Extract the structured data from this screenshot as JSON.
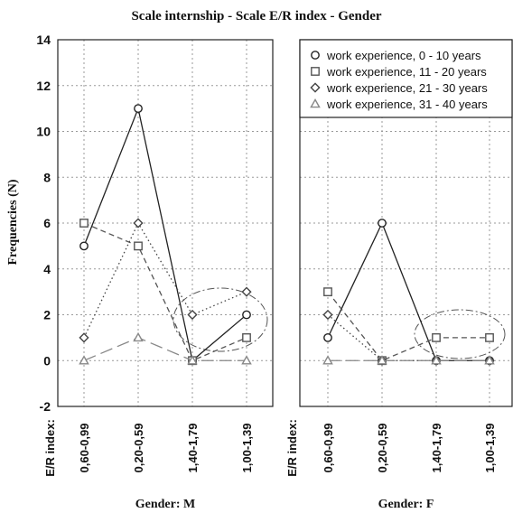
{
  "chart_data": {
    "type": "line",
    "title": "Scale internship  -  Scale E/R index  -  Gender",
    "ylabel": "Frequencies (N)",
    "ylim": [
      -2,
      14
    ],
    "yticks": [
      "14",
      "12",
      "10",
      "8",
      "6",
      "4",
      "2",
      "0",
      "-2"
    ],
    "ytick_values": [
      14,
      12,
      10,
      8,
      6,
      4,
      2,
      0,
      -2
    ],
    "x_axis_label": "E/R index:",
    "categories": [
      "0,60-0,99",
      "0,20-0,59",
      "1,40-1,79",
      "1,00-1,39"
    ],
    "grid": true,
    "legend_position": "top-right",
    "panels": [
      {
        "label": "Gender: M",
        "series": [
          {
            "name": "work experience, 0 - 10 years",
            "marker": "circle",
            "style": "solid",
            "color": "#222222",
            "values": [
              5,
              11,
              0,
              2
            ]
          },
          {
            "name": "work experience, 11 - 20 years",
            "marker": "square",
            "style": "dashed",
            "color": "#555555",
            "values": [
              6,
              5,
              0,
              1
            ]
          },
          {
            "name": "work experience, 21 - 30 years",
            "marker": "diamond",
            "style": "dotted",
            "color": "#444444",
            "values": [
              1,
              6,
              2,
              3
            ]
          },
          {
            "name": "work experience, 31 - 40 years",
            "marker": "triangle",
            "style": "longdash",
            "color": "#888888",
            "values": [
              0,
              1,
              0,
              0
            ]
          }
        ]
      },
      {
        "label": "Gender: F",
        "series": [
          {
            "name": "work experience, 0 - 10 years",
            "marker": "circle",
            "style": "solid",
            "color": "#222222",
            "values": [
              1,
              6,
              0,
              0
            ]
          },
          {
            "name": "work experience, 11 - 20 years",
            "marker": "square",
            "style": "dashed",
            "color": "#555555",
            "values": [
              3,
              0,
              1,
              1
            ]
          },
          {
            "name": "work experience, 21 - 30 years",
            "marker": "diamond",
            "style": "dotted",
            "color": "#444444",
            "values": [
              2,
              0,
              0,
              0
            ]
          },
          {
            "name": "work experience, 31 - 40 years",
            "marker": "triangle",
            "style": "longdash",
            "color": "#888888",
            "values": [
              0,
              0,
              0,
              0
            ]
          }
        ]
      }
    ],
    "legend": [
      "work experience, 0 - 10 years",
      "work experience, 11 - 20 years",
      "work experience, 21 - 30 years",
      "work experience, 31 - 40 years"
    ]
  }
}
